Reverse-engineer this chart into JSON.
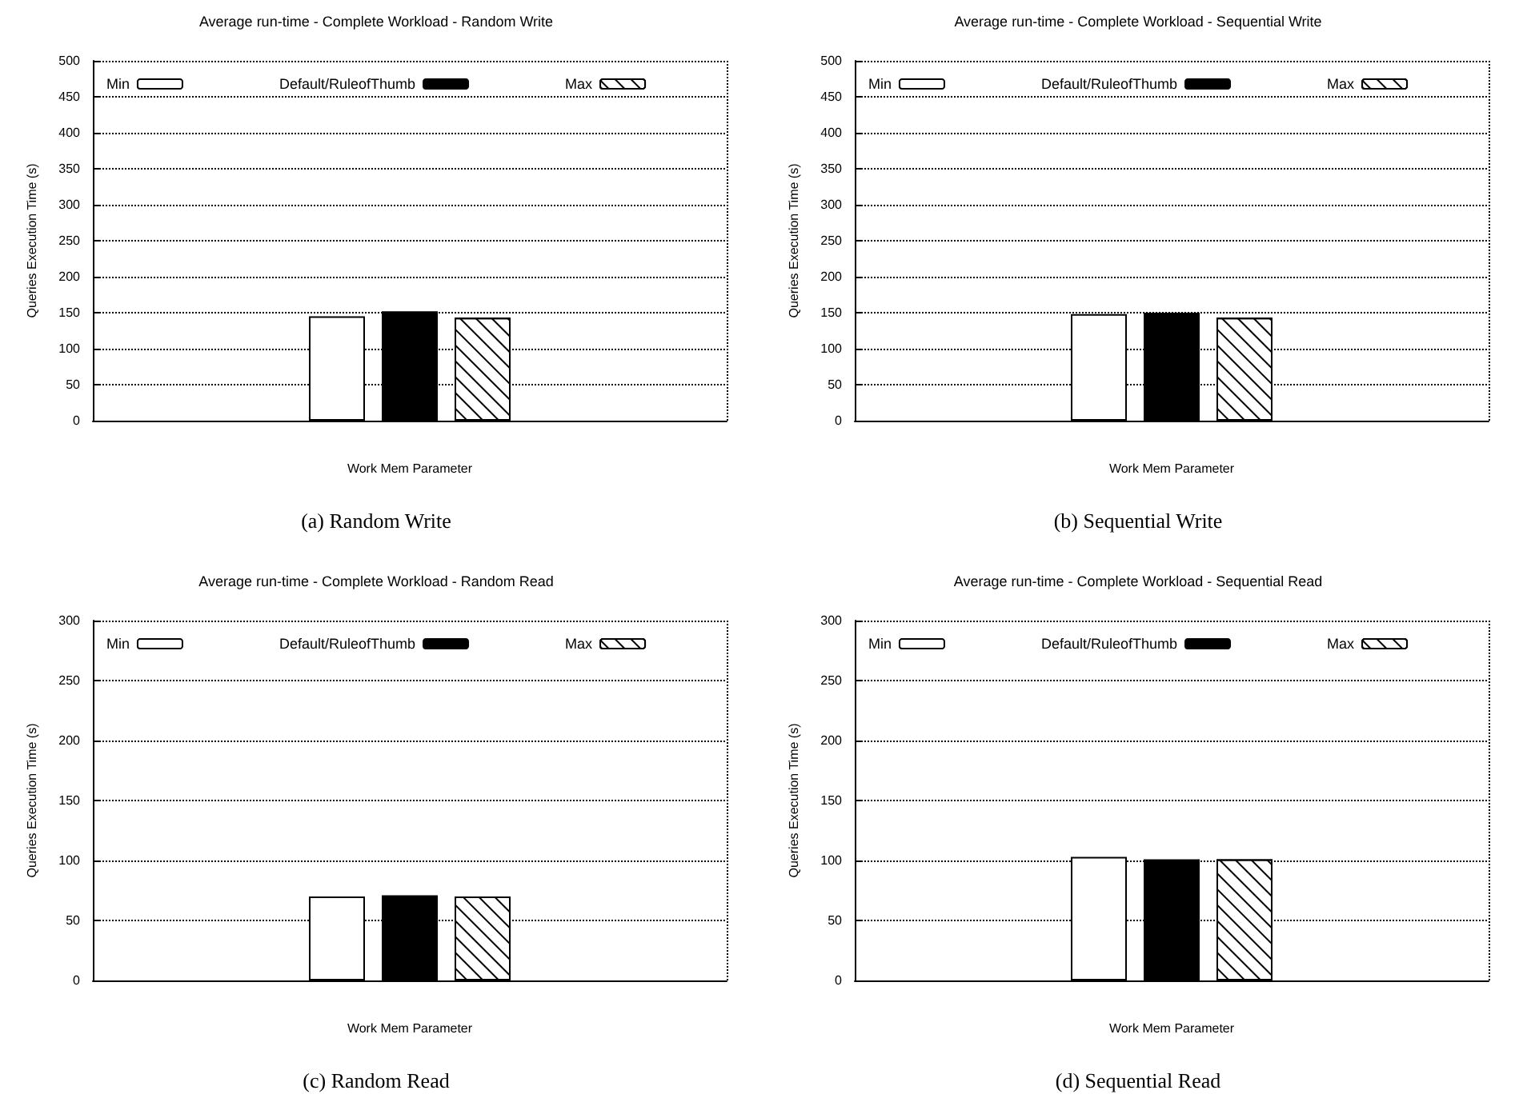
{
  "chart_data": [
    {
      "type": "bar",
      "title": "Average run-time - Complete Workload - Random Write",
      "xlabel": "Work Mem Parameter",
      "ylabel": "Queries Execution Time (s)",
      "annotations": [
        "(a)  Random Write"
      ],
      "categories": [
        null
      ],
      "ylim": [
        0,
        500
      ],
      "yticks": [
        0,
        50,
        100,
        150,
        200,
        250,
        300,
        350,
        400,
        450,
        500
      ],
      "grid": true,
      "legend": "top",
      "series": [
        {
          "name": "Min",
          "color": "#ffffff",
          "values": [
            145
          ]
        },
        {
          "name": "Default/RuleofThumb",
          "color": "#000000",
          "values": [
            152
          ]
        },
        {
          "name": "Max",
          "color": "#ffffff",
          "values": [
            143
          ]
        }
      ]
    },
    {
      "type": "bar",
      "title": "Average run-time - Complete Workload - Sequential Write",
      "xlabel": "Work Mem Parameter",
      "ylabel": "Queries Execution Time (s)",
      "annotations": [
        "(b)  Sequential Write"
      ],
      "categories": [
        null
      ],
      "ylim": [
        0,
        500
      ],
      "yticks": [
        0,
        50,
        100,
        150,
        200,
        250,
        300,
        350,
        400,
        450,
        500
      ],
      "grid": true,
      "legend": "top",
      "series": [
        {
          "name": "Min",
          "color": "#ffffff",
          "values": [
            148
          ]
        },
        {
          "name": "Default/RuleofThumb",
          "color": "#000000",
          "values": [
            150
          ]
        },
        {
          "name": "Max",
          "color": "#ffffff",
          "values": [
            143
          ]
        }
      ]
    },
    {
      "type": "bar",
      "title": "Average run-time - Complete Workload - Random Read",
      "xlabel": "Work Mem Parameter",
      "ylabel": "Queries Execution Time (s)",
      "annotations": [
        "(c)  Random Read"
      ],
      "categories": [
        null
      ],
      "ylim": [
        0,
        300
      ],
      "yticks": [
        0,
        50,
        100,
        150,
        200,
        250,
        300
      ],
      "grid": true,
      "legend": "top",
      "series": [
        {
          "name": "Min",
          "color": "#ffffff",
          "values": [
            70
          ]
        },
        {
          "name": "Default/RuleofThumb",
          "color": "#000000",
          "values": [
            71
          ]
        },
        {
          "name": "Max",
          "color": "#ffffff",
          "values": [
            70
          ]
        }
      ]
    },
    {
      "type": "bar",
      "title": "Average run-time - Complete Workload - Sequential Read",
      "xlabel": "Work Mem Parameter",
      "ylabel": "Queries Execution Time (s)",
      "annotations": [
        "(d)  Sequential Read"
      ],
      "categories": [
        null
      ],
      "ylim": [
        0,
        300
      ],
      "yticks": [
        0,
        50,
        100,
        150,
        200,
        250,
        300
      ],
      "grid": true,
      "legend": "top",
      "series": [
        {
          "name": "Min",
          "color": "#ffffff",
          "values": [
            103
          ]
        },
        {
          "name": "Default/RuleofThumb",
          "color": "#000000",
          "values": [
            101
          ]
        },
        {
          "name": "Max",
          "color": "#ffffff",
          "values": [
            101
          ]
        }
      ]
    }
  ]
}
